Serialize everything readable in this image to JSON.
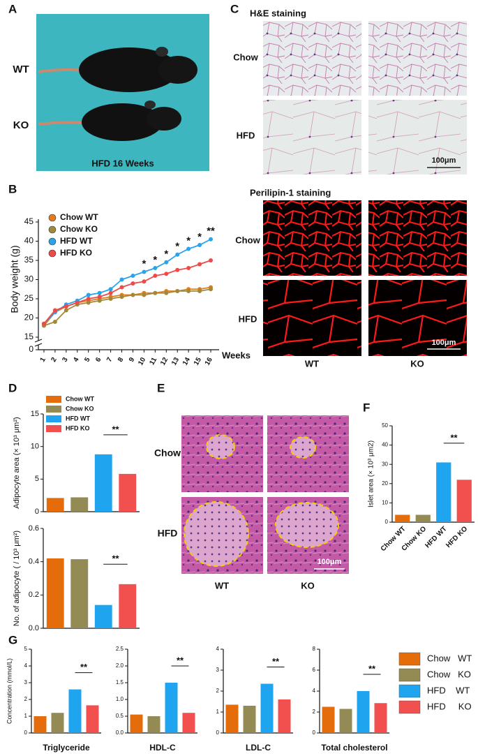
{
  "panel_labels": [
    "A",
    "B",
    "C",
    "D",
    "E",
    "F",
    "G"
  ],
  "photo_a": {
    "rows": [
      "WT",
      "KO"
    ],
    "caption": "HFD  16 Weeks"
  },
  "photo_c": {
    "he_title": "H&E staining",
    "he_rows": [
      "Chow",
      "HFD"
    ],
    "he_scale_bar": "100μm",
    "perilipin_title": "Perilipin-1 staining",
    "perilipin_rows": [
      "Chow",
      "HFD"
    ],
    "perilipin_scale_bar": "100μm",
    "columns": [
      "WT",
      "KO"
    ]
  },
  "photo_e": {
    "rows": [
      "Chow",
      "HFD"
    ],
    "scale_bar": "100μm",
    "columns": [
      "WT",
      "KO"
    ]
  },
  "legend_g": {
    "labels": [
      "Chow   WT",
      "Chow   KO",
      "HFD    WT",
      "HFD     KO"
    ]
  },
  "chart_data": [
    {
      "type": "line",
      "ylabel": "Body weight (g)",
      "xlabel": "Weeks",
      "x": [
        1,
        2,
        3,
        4,
        5,
        6,
        7,
        8,
        9,
        10,
        11,
        12,
        13,
        14,
        15,
        16
      ],
      "xlim": [
        0.5,
        16.5
      ],
      "xticks": [
        1,
        2,
        3,
        4,
        5,
        6,
        7,
        8,
        9,
        10,
        11,
        12,
        13,
        14,
        15,
        16
      ],
      "ylim": [
        0,
        45
      ],
      "ybreak": [
        0,
        15
      ],
      "yticks": [
        0,
        15,
        20,
        25,
        30,
        35,
        40,
        45
      ],
      "series": [
        {
          "name": "Chow WT",
          "color": "#e07b1f",
          "values": [
            18,
            21.5,
            23,
            24,
            24.5,
            25,
            25.5,
            26,
            26,
            26.5,
            26.5,
            27,
            27,
            27.5,
            27.5,
            28
          ]
        },
        {
          "name": "Chow KO",
          "color": "#a08a3a",
          "values": [
            18,
            19,
            22,
            23.5,
            24,
            24.5,
            25,
            25.5,
            26,
            26,
            26.5,
            26.5,
            27,
            27,
            27,
            27.5
          ]
        },
        {
          "name": "HFD WT",
          "color": "#2aa3e8",
          "values": [
            18.5,
            21.5,
            23.5,
            24.5,
            26,
            26.5,
            27.5,
            30,
            31,
            32,
            33,
            34.5,
            36.5,
            38,
            39,
            40.5
          ]
        },
        {
          "name": "HFD KO",
          "color": "#ef4a4a",
          "values": [
            18.5,
            22,
            23,
            24,
            25,
            25.5,
            26.5,
            28,
            29,
            29.5,
            31,
            31.5,
            32.5,
            33,
            34,
            35
          ]
        }
      ],
      "significance": [
        null,
        null,
        null,
        null,
        null,
        null,
        null,
        null,
        null,
        "*",
        "*",
        "*",
        "*",
        "*",
        "*",
        "**"
      ]
    },
    {
      "type": "bar",
      "ylabel": "Adipocyte area (× 10³ μm²)",
      "categories": [
        null,
        null,
        null,
        null
      ],
      "legend": [
        "Chow WT",
        "Chow KO",
        "HFD WT",
        "HFD KO"
      ],
      "colors": [
        "#e46c0a",
        "#948a54",
        "#1fa5f0",
        "#f24f4f"
      ],
      "values": [
        2.1,
        2.2,
        8.8,
        5.8
      ],
      "ylim": [
        0,
        15
      ],
      "yticks": [
        0,
        5,
        10,
        15
      ],
      "significance": "**"
    },
    {
      "type": "bar",
      "ylabel": "No. of adipocyte ( / 10³ μm²)",
      "categories": [
        null,
        null,
        null,
        null
      ],
      "colors": [
        "#e46c0a",
        "#948a54",
        "#1fa5f0",
        "#f24f4f"
      ],
      "values": [
        0.42,
        0.415,
        0.14,
        0.265
      ],
      "ylim": [
        0,
        0.6
      ],
      "yticks": [
        {
          "value": 0,
          "label": "0.0"
        },
        0.2,
        0.4,
        0.6
      ],
      "significance": "**"
    },
    {
      "type": "bar",
      "ylabel": "Islet area (× 10³ μm2)",
      "categories": [
        "Chow  WT",
        "Chow  KO",
        "HFD  WT",
        "HFD  KO"
      ],
      "colors": [
        "#e46c0a",
        "#948a54",
        "#1fa5f0",
        "#f24f4f"
      ],
      "values": [
        3.8,
        3.8,
        31,
        22
      ],
      "ylim": [
        0,
        50
      ],
      "yticks": [
        0,
        10,
        20,
        30,
        40,
        50
      ],
      "significance": "**"
    },
    {
      "type": "bar",
      "ylabel": "Concentration (mmol/L)",
      "xlabel": "Triglyceride",
      "categories": [
        null,
        null,
        null,
        null
      ],
      "colors": [
        "#e46c0a",
        "#948a54",
        "#1fa5f0",
        "#f24f4f"
      ],
      "values": [
        1.0,
        1.2,
        2.6,
        1.65
      ],
      "ylim": [
        0,
        5
      ],
      "yticks": [
        0,
        1,
        2,
        3,
        4,
        5
      ],
      "significance": "**"
    },
    {
      "type": "bar",
      "xlabel": "HDL-C",
      "categories": [
        null,
        null,
        null,
        null
      ],
      "colors": [
        "#e46c0a",
        "#948a54",
        "#1fa5f0",
        "#f24f4f"
      ],
      "values": [
        0.55,
        0.5,
        1.5,
        0.6
      ],
      "ylim": [
        0,
        2.5
      ],
      "yticks": [
        {
          "value": 0,
          "label": "0.0"
        },
        0.5,
        {
          "value": 1,
          "label": "1.0"
        },
        1.5,
        {
          "value": 2,
          "label": "2.0"
        },
        2.5
      ],
      "significance": "**"
    },
    {
      "type": "bar",
      "xlabel": "LDL-C",
      "categories": [
        null,
        null,
        null,
        null
      ],
      "colors": [
        "#e46c0a",
        "#948a54",
        "#1fa5f0",
        "#f24f4f"
      ],
      "values": [
        1.35,
        1.3,
        2.35,
        1.6
      ],
      "ylim": [
        0,
        4
      ],
      "yticks": [
        0,
        1,
        2,
        3,
        4
      ],
      "significance": "**"
    },
    {
      "type": "bar",
      "xlabel": "Total cholesterol",
      "categories": [
        null,
        null,
        null,
        null
      ],
      "colors": [
        "#e46c0a",
        "#948a54",
        "#1fa5f0",
        "#f24f4f"
      ],
      "values": [
        2.5,
        2.3,
        4.0,
        2.85
      ],
      "ylim": [
        0,
        8
      ],
      "yticks": [
        0,
        2,
        4,
        6,
        8
      ],
      "significance": "**"
    }
  ]
}
